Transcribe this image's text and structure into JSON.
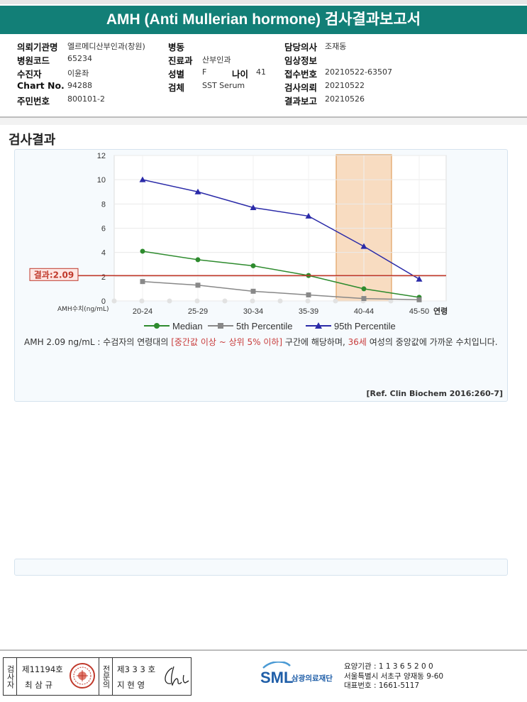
{
  "title": "AMH (Anti Mullerian hormone) 검사결과보고서",
  "info": {
    "hospital_label": "의뢰기관명",
    "hospital": "엘르메디산부인과(창원)",
    "code_label": "병원코드",
    "code": "65234",
    "patient_label": "수진자",
    "patient": "이윤좌",
    "chart_label": "Chart No.",
    "chart_no": "94288",
    "id_label": "주민번호",
    "id_no": "800101-2",
    "ward_label": "병동",
    "ward": "",
    "dept_label": "진료과",
    "dept": "산부인과",
    "sex_label": "성별",
    "sex": "F",
    "age_label": "나이",
    "age": "41",
    "specimen_label": "검체",
    "specimen": "SST Serum",
    "doctor_label": "담당의사",
    "doctor": "조재동",
    "clinical_label": "임상정보",
    "clinical": "",
    "receipt_label": "접수번호",
    "receipt": "20210522-63507",
    "request_label": "검사의뢰",
    "request": "20210522",
    "report_label": "결과보고",
    "report": "20210526"
  },
  "section_title": "검사결과",
  "chart_data": {
    "type": "line",
    "categories": [
      "20-24",
      "25-29",
      "30-34",
      "35-39",
      "40-44",
      "45-50"
    ],
    "x_axis_end_label": "연령",
    "y_axis_label": "AMH수치(ng/mL)",
    "ylim": [
      0,
      12
    ],
    "yticks": [
      0,
      2,
      4,
      6,
      8,
      10,
      12
    ],
    "grid": true,
    "series": [
      {
        "name": "Median",
        "color": "#2e8b2e",
        "marker": "circle",
        "values": [
          4.1,
          3.4,
          2.9,
          2.1,
          1.0,
          0.3
        ]
      },
      {
        "name": "5th Percentile",
        "color": "#888888",
        "marker": "square",
        "values": [
          1.6,
          1.3,
          0.8,
          0.5,
          0.2,
          0.1
        ]
      },
      {
        "name": "95th Percentile",
        "color": "#2a2aa8",
        "marker": "triangle",
        "values": [
          10.0,
          9.0,
          7.7,
          7.0,
          4.5,
          1.8
        ]
      }
    ],
    "result_line": {
      "value": 2.09,
      "label": "결과:2.09",
      "color": "#c0392b"
    },
    "highlight_category": "40-44",
    "highlight_color": "#f5c9a0",
    "legend_position": "bottom"
  },
  "comment": {
    "part1": "AMH  2.09 ng/mL : 수검자의 연령대의 ",
    "highlight1": "[중간값 이상 ~ 상위 5% 이하]",
    "part2": " 구간에 해당하며, ",
    "highlight2": "36세",
    "part3": " 여성의 중앙값에 가까운 수치입니다."
  },
  "reference": "[Ref. Clin Biochem 2016:260-7]",
  "footer": {
    "tester_vertical": "검사자",
    "tester_no": "제11194호",
    "tester_name": "최 삼 규",
    "doctor_vertical": "전문의",
    "doctor_no": "제3 3 3 호",
    "doctor_name": "지 현 영",
    "org_logo_text": "SML",
    "org_name": "삼광의료재단",
    "institution_no": "요양기관 : 1 1 3 6 5 2 0 0",
    "address": "서울특별시 서초구 양재동 9-60",
    "phone": "대표번호 : 1661-5117"
  }
}
